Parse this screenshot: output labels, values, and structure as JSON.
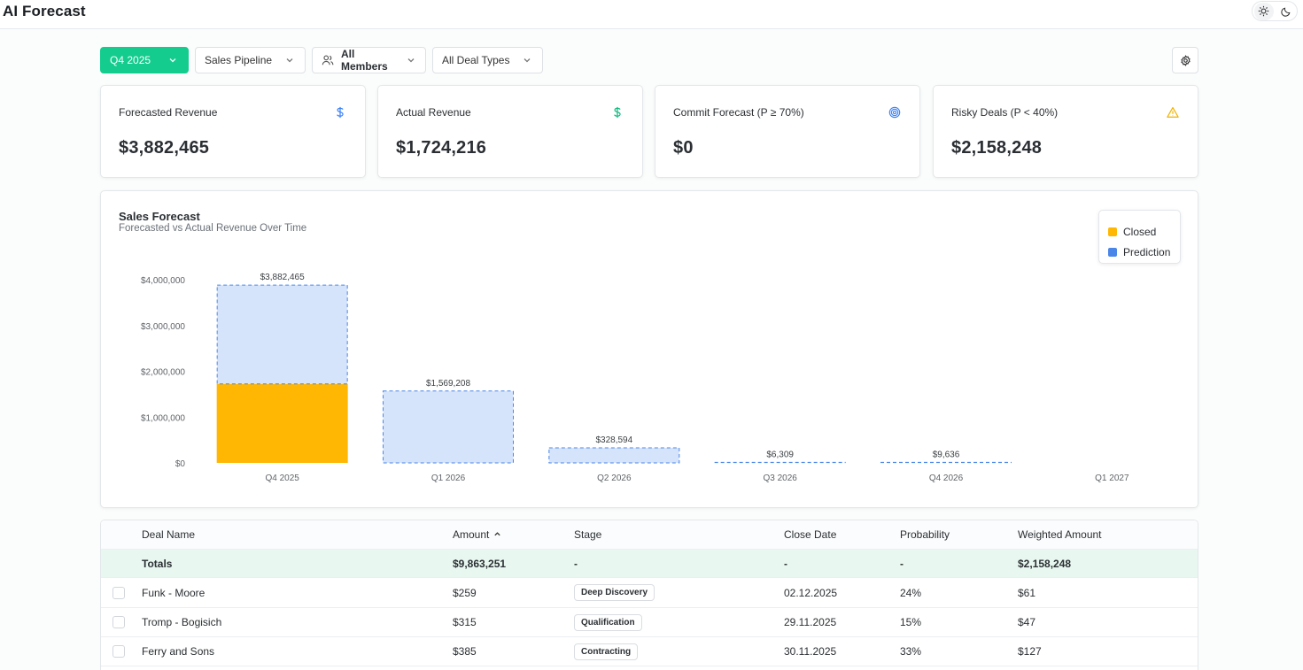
{
  "app": {
    "title": "AI Forecast"
  },
  "filters": {
    "period": "Q4 2025",
    "pipeline": "Sales Pipeline",
    "members": "All Members",
    "deal_types": "All Deal Types"
  },
  "kpis": [
    {
      "title": "Forecasted Revenue",
      "value": "$3,882,465",
      "icon": "dollar-icon",
      "color": "#3b82f6"
    },
    {
      "title": "Actual Revenue",
      "value": "$1,724,216",
      "icon": "dollar-icon",
      "color": "#10b981"
    },
    {
      "title": "Commit Forecast (P ≥ 70%)",
      "value": "$0",
      "icon": "target-icon",
      "color": "#3b82f6"
    },
    {
      "title": "Risky Deals (P < 40%)",
      "value": "$2,158,248",
      "icon": "warning-icon",
      "color": "#f0b400"
    }
  ],
  "chart": {
    "title": "Sales Forecast",
    "subtitle": "Forecasted vs Actual Revenue Over Time",
    "legend": [
      {
        "label": "Closed",
        "color": "#ffb703"
      },
      {
        "label": "Prediction",
        "color": "#4a86e8"
      }
    ]
  },
  "chart_data": {
    "type": "bar",
    "stacked": true,
    "categories": [
      "Q4 2025",
      "Q1 2026",
      "Q2 2026",
      "Q3 2026",
      "Q4 2026",
      "Q1 2027"
    ],
    "series": [
      {
        "name": "Closed",
        "values": [
          1724216,
          0,
          0,
          0,
          0,
          0
        ]
      },
      {
        "name": "Prediction",
        "values": [
          2158249,
          1569208,
          328594,
          6309,
          9636,
          0
        ]
      }
    ],
    "totals_labels": [
      "$3,882,465",
      "$1,569,208",
      "$328,594",
      "$6,309",
      "$9,636",
      ""
    ],
    "yticks": [
      0,
      1000000,
      2000000,
      3000000,
      4000000
    ],
    "ytick_labels": [
      "$0",
      "$1,000,000",
      "$2,000,000",
      "$3,000,000",
      "$4,000,000"
    ],
    "ylim": [
      0,
      4000000
    ],
    "legend_position": "top-right",
    "grid": false
  },
  "table": {
    "columns": [
      "Deal Name",
      "Amount",
      "Stage",
      "Close Date",
      "Probability",
      "Weighted Amount"
    ],
    "totals": {
      "name": "Totals",
      "amount": "$9,863,251",
      "stage": "-",
      "close": "-",
      "prob": "-",
      "weighted": "$2,158,248"
    },
    "rows": [
      {
        "name": "Funk - Moore",
        "amount": "$259",
        "stage": "Deep Discovery",
        "close": "02.12.2025",
        "prob": "24%",
        "weighted": "$61"
      },
      {
        "name": "Tromp - Bogisich",
        "amount": "$315",
        "stage": "Qualification",
        "close": "29.11.2025",
        "prob": "15%",
        "weighted": "$47"
      },
      {
        "name": "Ferry and Sons",
        "amount": "$385",
        "stage": "Contracting",
        "close": "30.11.2025",
        "prob": "33%",
        "weighted": "$127"
      }
    ]
  }
}
